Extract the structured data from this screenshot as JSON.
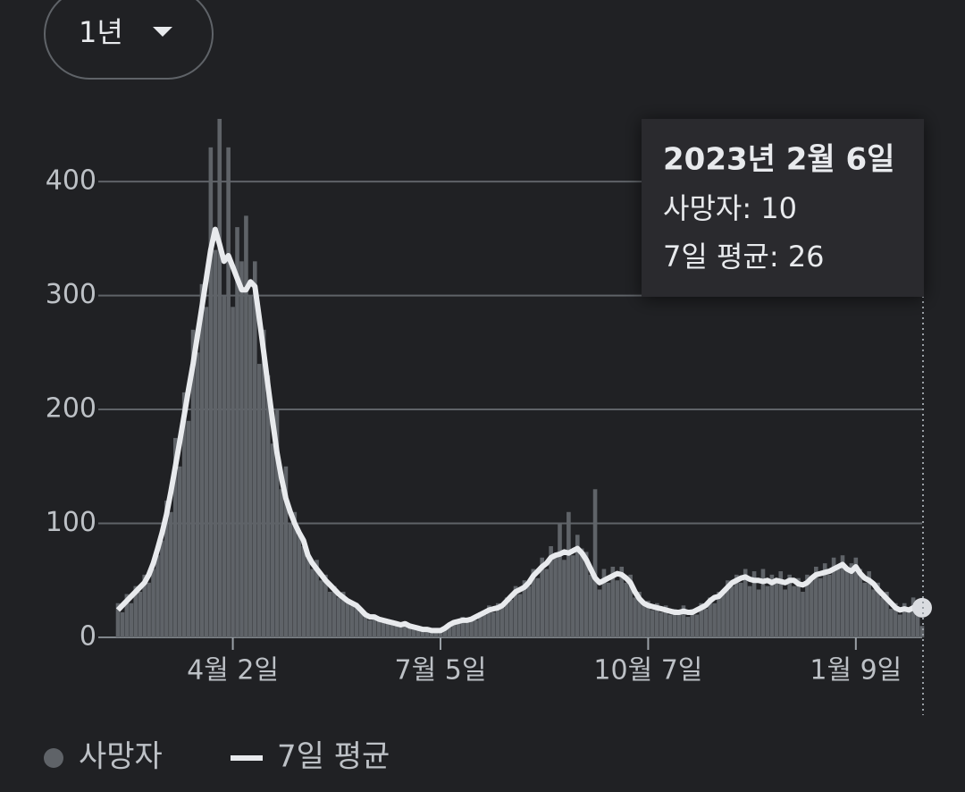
{
  "control": {
    "range": "1년"
  },
  "tooltip": {
    "title": "2023년 2월 6일"
  },
  "chart_data": {
    "type": "bar",
    "ylim": [
      0,
      455
    ],
    "yticks": [
      0,
      100,
      200,
      300,
      400
    ],
    "grid": true,
    "categories": [
      null,
      null,
      null,
      null,
      null,
      null,
      null,
      null,
      null,
      null,
      null,
      null,
      null,
      null,
      null,
      null,
      null,
      null,
      null,
      null,
      null,
      null,
      null,
      null,
      null,
      null,
      "4월 2일",
      null,
      null,
      null,
      null,
      null,
      null,
      null,
      null,
      null,
      null,
      null,
      null,
      null,
      null,
      null,
      null,
      null,
      null,
      null,
      null,
      null,
      null,
      null,
      null,
      null,
      null,
      null,
      null,
      null,
      null,
      null,
      null,
      null,
      null,
      null,
      null,
      null,
      null,
      null,
      null,
      null,
      null,
      null,
      null,
      null,
      null,
      "7월 5일",
      null,
      null,
      null,
      null,
      null,
      null,
      null,
      null,
      null,
      null,
      null,
      null,
      null,
      null,
      null,
      null,
      null,
      null,
      null,
      null,
      null,
      null,
      null,
      null,
      null,
      null,
      null,
      null,
      null,
      null,
      null,
      null,
      null,
      null,
      null,
      null,
      null,
      null,
      null,
      null,
      null,
      null,
      null,
      null,
      null,
      null,
      "10월 7일",
      null,
      null,
      null,
      null,
      null,
      null,
      null,
      null,
      null,
      null,
      null,
      null,
      null,
      null,
      null,
      null,
      null,
      null,
      null,
      null,
      null,
      null,
      null,
      null,
      null,
      null,
      null,
      null,
      null,
      null,
      null,
      null,
      null,
      null,
      null,
      null,
      null,
      null,
      null,
      null,
      null,
      null,
      null,
      null,
      null,
      null,
      "1월 9일",
      null,
      null,
      null,
      null,
      null,
      null,
      null,
      null,
      null,
      null,
      null,
      null,
      null,
      null,
      null
    ],
    "series": [
      {
        "name": "사망자",
        "type": "bar",
        "color": "#5f6368",
        "values": [
          30,
          22,
          38,
          30,
          45,
          40,
          55,
          48,
          60,
          72,
          85,
          120,
          110,
          175,
          150,
          215,
          190,
          270,
          250,
          310,
          290,
          430,
          340,
          455,
          300,
          430,
          290,
          360,
          330,
          370,
          300,
          330,
          240,
          270,
          230,
          170,
          200,
          130,
          150,
          100,
          110,
          90,
          80,
          70,
          60,
          68,
          50,
          55,
          40,
          45,
          35,
          40,
          30,
          28,
          30,
          22,
          20,
          15,
          20,
          14,
          16,
          12,
          15,
          10,
          13,
          10,
          12,
          8,
          9,
          6,
          8,
          5,
          7,
          5,
          9,
          12,
          14,
          12,
          18,
          14,
          18,
          15,
          22,
          20,
          28,
          22,
          30,
          26,
          35,
          33,
          45,
          38,
          50,
          45,
          60,
          52,
          70,
          60,
          80,
          70,
          100,
          68,
          110,
          72,
          90,
          78,
          75,
          55,
          130,
          42,
          60,
          48,
          62,
          50,
          62,
          48,
          55,
          35,
          40,
          28,
          32,
          24,
          30,
          22,
          28,
          20,
          25,
          20,
          28,
          18,
          25,
          20,
          30,
          25,
          35,
          30,
          40,
          38,
          50,
          45,
          55,
          48,
          60,
          45,
          58,
          42,
          60,
          45,
          55,
          48,
          58,
          42,
          55,
          45,
          52,
          40,
          55,
          50,
          62,
          52,
          65,
          55,
          70,
          60,
          72,
          58,
          65,
          70,
          60,
          48,
          58,
          42,
          48,
          35,
          40,
          25,
          30,
          20,
          30,
          22,
          35,
          25,
          10
        ]
      },
      {
        "name": "7일 평균",
        "type": "line",
        "color": "#e8eaed",
        "values": [
          24,
          28,
          32,
          36,
          40,
          44,
          48,
          55,
          65,
          78,
          92,
          108,
          128,
          150,
          172,
          195,
          218,
          240,
          265,
          290,
          315,
          340,
          358,
          345,
          330,
          335,
          325,
          315,
          305,
          305,
          312,
          308,
          280,
          250,
          220,
          190,
          162,
          140,
          122,
          110,
          100,
          92,
          85,
          72,
          65,
          60,
          55,
          50,
          46,
          42,
          38,
          35,
          32,
          30,
          28,
          24,
          20,
          18,
          18,
          16,
          15,
          14,
          13,
          12,
          11,
          12,
          10,
          9,
          8,
          7,
          7,
          6,
          6,
          6,
          8,
          11,
          13,
          14,
          15,
          15,
          16,
          18,
          20,
          22,
          24,
          25,
          26,
          28,
          32,
          36,
          40,
          42,
          44,
          48,
          54,
          58,
          62,
          65,
          70,
          72,
          73,
          75,
          74,
          76,
          78,
          74,
          68,
          60,
          52,
          48,
          50,
          52,
          54,
          56,
          55,
          52,
          48,
          40,
          34,
          30,
          28,
          27,
          26,
          25,
          24,
          23,
          22,
          22,
          23,
          22,
          22,
          24,
          26,
          28,
          32,
          35,
          36,
          40,
          44,
          48,
          50,
          52,
          53,
          51,
          50,
          50,
          49,
          50,
          48,
          50,
          49,
          48,
          50,
          50,
          47,
          46,
          48,
          52,
          55,
          56,
          57,
          58,
          60,
          62,
          64,
          60,
          58,
          62,
          56,
          52,
          50,
          47,
          42,
          38,
          34,
          30,
          26,
          24,
          25,
          24,
          26,
          28,
          26
        ]
      }
    ]
  }
}
